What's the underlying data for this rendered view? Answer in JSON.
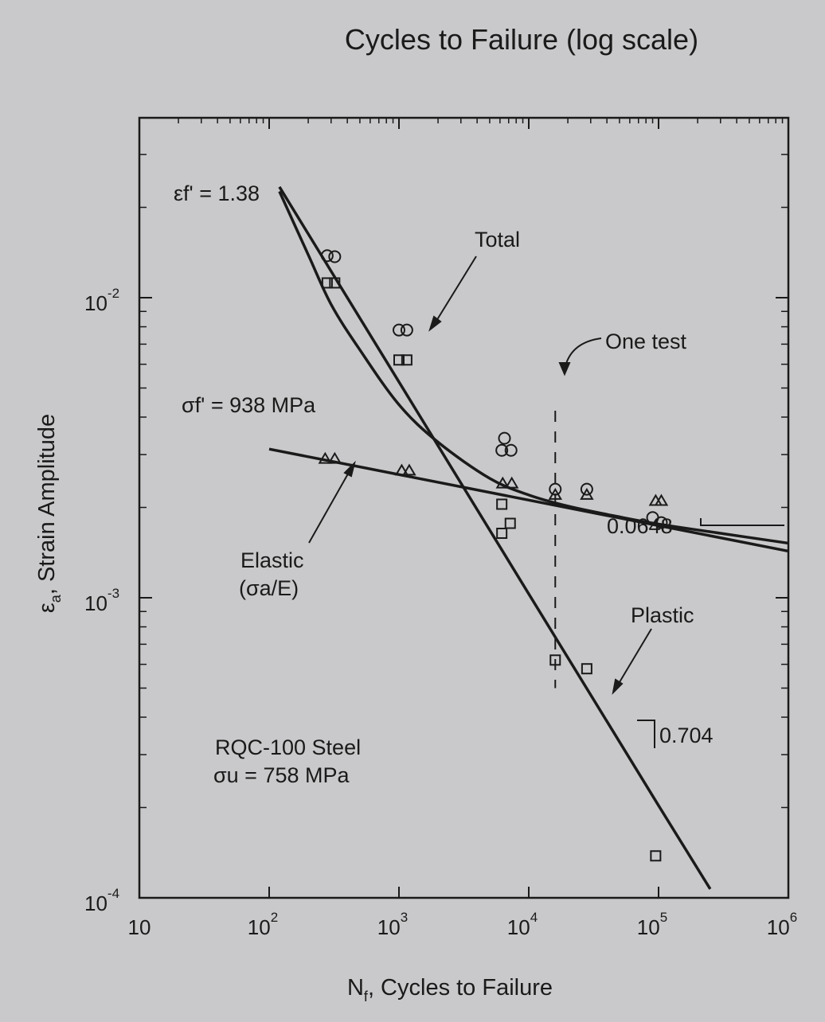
{
  "page_title": "Cycles to Failure (log scale)",
  "chart_data": {
    "type": "line",
    "xscale": "log",
    "yscale": "log",
    "xlim": [
      10,
      1000000
    ],
    "ylim": [
      0.0001,
      0.03
    ],
    "xlabel_main": "N",
    "xlabel_sub": "f",
    "xlabel_rest": ", Cycles to Failure",
    "ylabel_main": "ε",
    "ylabel_sub": "a",
    "ylabel_rest": ", Strain Amplitude",
    "x_ticks": [
      {
        "value": 10,
        "base": "10",
        "exp": ""
      },
      {
        "value": 100,
        "base": "10",
        "exp": "2"
      },
      {
        "value": 1000,
        "base": "10",
        "exp": "3"
      },
      {
        "value": 10000,
        "base": "10",
        "exp": "4"
      },
      {
        "value": 100000,
        "base": "10",
        "exp": "5"
      },
      {
        "value": 1000000,
        "base": "10",
        "exp": "6"
      }
    ],
    "y_ticks": [
      {
        "value": 0.0001,
        "base": "10",
        "exp": "-4"
      },
      {
        "value": 0.001,
        "base": "10",
        "exp": "-3"
      },
      {
        "value": 0.01,
        "base": "10",
        "exp": "-2"
      }
    ],
    "series": [
      {
        "name": "Total",
        "style": "line",
        "x": [
          120,
          200,
          300,
          500,
          1000,
          2000,
          5000,
          10000,
          20000,
          50000,
          100000,
          300000,
          1000000
        ],
        "y": [
          0.0226,
          0.0139,
          0.0095,
          0.0067,
          0.0044,
          0.0033,
          0.0025,
          0.0022,
          0.00202,
          0.00186,
          0.00176,
          0.00164,
          0.00152
        ]
      },
      {
        "name": "Elastic",
        "label_line2": "(σa/E)",
        "style": "line",
        "x": [
          100,
          1000000
        ],
        "y": [
          0.00313,
          0.00143
        ]
      },
      {
        "name": "Plastic",
        "style": "line",
        "x": [
          120,
          1000,
          10000,
          100000,
          250000
        ],
        "y": [
          0.0234,
          0.00524,
          0.00103,
          0.000203,
          0.000107
        ]
      },
      {
        "name": "Total data",
        "marker": "circle",
        "x": [
          280,
          320,
          1000,
          1150,
          6500,
          6200,
          7300,
          16000,
          28000,
          90000,
          105000
        ],
        "y": [
          0.0138,
          0.0137,
          0.0078,
          0.0078,
          0.0034,
          0.0031,
          0.0031,
          0.0023,
          0.0023,
          0.00185,
          0.00178
        ]
      },
      {
        "name": "Elastic data",
        "marker": "triangle",
        "x": [
          270,
          320,
          1050,
          1200,
          6300,
          7400,
          16000,
          28000,
          95000,
          105000
        ],
        "y": [
          0.0029,
          0.0029,
          0.00265,
          0.00265,
          0.0024,
          0.0024,
          0.0022,
          0.0022,
          0.0021,
          0.0021
        ]
      },
      {
        "name": "Plastic data",
        "marker": "square",
        "x": [
          280,
          320,
          1000,
          1150,
          6200,
          6200,
          7200,
          16000,
          28000,
          95000
        ],
        "y": [
          0.0112,
          0.0112,
          0.0062,
          0.0062,
          0.00205,
          0.00164,
          0.00177,
          0.00062,
          0.00058,
          0.000138
        ]
      }
    ],
    "one_test": {
      "label": "One test",
      "x": 16000,
      "y_top": 0.0042,
      "y_bottom": 0.0005
    },
    "annotations": {
      "ef_label": "εf' = 1.38",
      "sf_label": "σf' = 938 MPa",
      "total_label": "Total",
      "elastic_label": "Elastic",
      "elastic_label2": "(σa/E)",
      "plastic_label": "Plastic",
      "slope_elastic": "0.0648",
      "slope_plastic": "0.704",
      "material_line1": "RQC-100 Steel",
      "material_line2": "σu = 758 MPa"
    }
  }
}
